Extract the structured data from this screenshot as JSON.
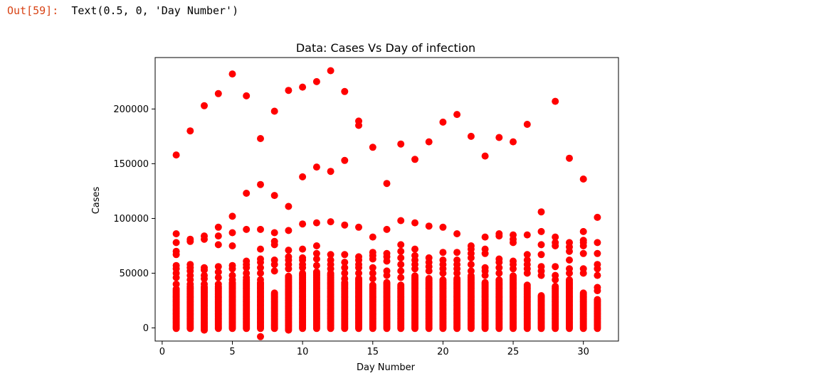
{
  "cell": {
    "prompt": "Out[59]:",
    "output": "Text(0.5, 0, 'Day Number')"
  },
  "chart_data": {
    "type": "scatter",
    "title": "Data: Cases Vs Day of infection",
    "xlabel": "Day Number",
    "ylabel": "Cases",
    "xlim": [
      -0.5,
      32.5
    ],
    "ylim": [
      -12000,
      247000
    ],
    "xticks": [
      0,
      5,
      10,
      15,
      20,
      25,
      30
    ],
    "yticks": [
      0,
      50000,
      100000,
      150000,
      200000
    ],
    "xtick_labels": [
      "0",
      "5",
      "10",
      "15",
      "20",
      "25",
      "30"
    ],
    "ytick_labels": [
      "0",
      "50000",
      "100000",
      "150000",
      "200000"
    ],
    "grid": false,
    "legend": "none",
    "marker_color": "#ff0000",
    "series": [
      {
        "points": [
          [
            1,
            158000
          ],
          [
            1,
            86000
          ],
          [
            1,
            78000
          ],
          [
            1,
            70000
          ],
          [
            1,
            67000
          ],
          [
            1,
            57000
          ],
          [
            1,
            54000
          ],
          [
            1,
            50000
          ],
          [
            1,
            46000
          ],
          [
            1,
            40000
          ],
          [
            2,
            180000
          ],
          [
            2,
            81000
          ],
          [
            2,
            79000
          ],
          [
            2,
            58000
          ],
          [
            2,
            55000
          ],
          [
            2,
            52000
          ],
          [
            2,
            48000
          ],
          [
            2,
            44000
          ],
          [
            2,
            40000
          ],
          [
            3,
            203000
          ],
          [
            3,
            84000
          ],
          [
            3,
            81000
          ],
          [
            3,
            55000
          ],
          [
            3,
            53000
          ],
          [
            3,
            48000
          ],
          [
            3,
            45000
          ],
          [
            3,
            40000
          ],
          [
            4,
            214000
          ],
          [
            4,
            92000
          ],
          [
            4,
            84000
          ],
          [
            4,
            76000
          ],
          [
            4,
            56000
          ],
          [
            4,
            51000
          ],
          [
            4,
            46000
          ],
          [
            4,
            40000
          ],
          [
            5,
            232000
          ],
          [
            5,
            102000
          ],
          [
            5,
            87000
          ],
          [
            5,
            75000
          ],
          [
            5,
            57000
          ],
          [
            5,
            54000
          ],
          [
            5,
            48000
          ],
          [
            5,
            44000
          ],
          [
            6,
            212000
          ],
          [
            6,
            123000
          ],
          [
            6,
            90000
          ],
          [
            6,
            61000
          ],
          [
            6,
            58000
          ],
          [
            6,
            55000
          ],
          [
            6,
            50000
          ],
          [
            6,
            46000
          ],
          [
            7,
            173000
          ],
          [
            7,
            131000
          ],
          [
            7,
            90000
          ],
          [
            7,
            72000
          ],
          [
            7,
            63000
          ],
          [
            7,
            60000
          ],
          [
            7,
            55000
          ],
          [
            7,
            50000
          ],
          [
            7,
            44000
          ],
          [
            7,
            -8000
          ],
          [
            8,
            198000
          ],
          [
            8,
            121000
          ],
          [
            8,
            87000
          ],
          [
            8,
            79000
          ],
          [
            8,
            76000
          ],
          [
            8,
            62000
          ],
          [
            8,
            58000
          ],
          [
            8,
            52000
          ],
          [
            9,
            217000
          ],
          [
            9,
            111000
          ],
          [
            9,
            89000
          ],
          [
            9,
            71000
          ],
          [
            9,
            65000
          ],
          [
            9,
            62000
          ],
          [
            9,
            58000
          ],
          [
            9,
            54000
          ],
          [
            10,
            220000
          ],
          [
            10,
            138000
          ],
          [
            10,
            95000
          ],
          [
            10,
            72000
          ],
          [
            10,
            64000
          ],
          [
            10,
            62000
          ],
          [
            10,
            58000
          ],
          [
            10,
            55000
          ],
          [
            11,
            225000
          ],
          [
            11,
            147000
          ],
          [
            11,
            96000
          ],
          [
            11,
            75000
          ],
          [
            11,
            68000
          ],
          [
            11,
            63000
          ],
          [
            11,
            57000
          ],
          [
            12,
            235000
          ],
          [
            12,
            143000
          ],
          [
            12,
            97000
          ],
          [
            12,
            67000
          ],
          [
            12,
            62000
          ],
          [
            12,
            58000
          ],
          [
            12,
            54000
          ],
          [
            13,
            216000
          ],
          [
            13,
            153000
          ],
          [
            13,
            94000
          ],
          [
            13,
            67000
          ],
          [
            13,
            60000
          ],
          [
            13,
            55000
          ],
          [
            13,
            50000
          ],
          [
            13,
            45000
          ],
          [
            14,
            189000
          ],
          [
            14,
            185000
          ],
          [
            14,
            92000
          ],
          [
            14,
            65000
          ],
          [
            14,
            62000
          ],
          [
            14,
            58000
          ],
          [
            14,
            55000
          ],
          [
            14,
            50000
          ],
          [
            15,
            165000
          ],
          [
            15,
            83000
          ],
          [
            15,
            69000
          ],
          [
            15,
            66000
          ],
          [
            15,
            63000
          ],
          [
            15,
            55000
          ],
          [
            15,
            50000
          ],
          [
            15,
            45000
          ],
          [
            16,
            132000
          ],
          [
            16,
            90000
          ],
          [
            16,
            68000
          ],
          [
            16,
            65000
          ],
          [
            16,
            61000
          ],
          [
            16,
            52000
          ],
          [
            16,
            48000
          ],
          [
            17,
            168000
          ],
          [
            17,
            98000
          ],
          [
            17,
            76000
          ],
          [
            17,
            70000
          ],
          [
            17,
            64000
          ],
          [
            17,
            58000
          ],
          [
            17,
            52000
          ],
          [
            17,
            46000
          ],
          [
            18,
            154000
          ],
          [
            18,
            96000
          ],
          [
            18,
            72000
          ],
          [
            18,
            66000
          ],
          [
            18,
            62000
          ],
          [
            18,
            58000
          ],
          [
            18,
            54000
          ],
          [
            19,
            170000
          ],
          [
            19,
            93000
          ],
          [
            19,
            64000
          ],
          [
            19,
            60000
          ],
          [
            19,
            56000
          ],
          [
            19,
            52000
          ],
          [
            20,
            188000
          ],
          [
            20,
            92000
          ],
          [
            20,
            69000
          ],
          [
            20,
            62000
          ],
          [
            20,
            58000
          ],
          [
            20,
            54000
          ],
          [
            20,
            50000
          ],
          [
            21,
            195000
          ],
          [
            21,
            86000
          ],
          [
            21,
            69000
          ],
          [
            21,
            62000
          ],
          [
            21,
            58000
          ],
          [
            21,
            54000
          ],
          [
            21,
            50000
          ],
          [
            22,
            175000
          ],
          [
            22,
            75000
          ],
          [
            22,
            72000
          ],
          [
            22,
            68000
          ],
          [
            22,
            64000
          ],
          [
            22,
            58000
          ],
          [
            22,
            52000
          ],
          [
            23,
            157000
          ],
          [
            23,
            83000
          ],
          [
            23,
            72000
          ],
          [
            23,
            68000
          ],
          [
            23,
            55000
          ],
          [
            23,
            52000
          ],
          [
            23,
            48000
          ],
          [
            24,
            174000
          ],
          [
            24,
            86000
          ],
          [
            24,
            84000
          ],
          [
            24,
            63000
          ],
          [
            24,
            60000
          ],
          [
            24,
            55000
          ],
          [
            24,
            50000
          ],
          [
            25,
            170000
          ],
          [
            25,
            85000
          ],
          [
            25,
            81000
          ],
          [
            25,
            78000
          ],
          [
            25,
            61000
          ],
          [
            25,
            58000
          ],
          [
            25,
            54000
          ],
          [
            26,
            186000
          ],
          [
            26,
            85000
          ],
          [
            26,
            67000
          ],
          [
            26,
            62000
          ],
          [
            26,
            58000
          ],
          [
            26,
            54000
          ],
          [
            26,
            50000
          ],
          [
            27,
            106000
          ],
          [
            27,
            88000
          ],
          [
            27,
            76000
          ],
          [
            27,
            67000
          ],
          [
            27,
            56000
          ],
          [
            27,
            52000
          ],
          [
            27,
            48000
          ],
          [
            28,
            207000
          ],
          [
            28,
            83000
          ],
          [
            28,
            78000
          ],
          [
            28,
            75000
          ],
          [
            28,
            56000
          ],
          [
            28,
            48000
          ],
          [
            28,
            44000
          ],
          [
            29,
            155000
          ],
          [
            29,
            78000
          ],
          [
            29,
            74000
          ],
          [
            29,
            70000
          ],
          [
            29,
            62000
          ],
          [
            29,
            54000
          ],
          [
            29,
            50000
          ],
          [
            30,
            136000
          ],
          [
            30,
            88000
          ],
          [
            30,
            80000
          ],
          [
            30,
            78000
          ],
          [
            30,
            75000
          ],
          [
            30,
            68000
          ],
          [
            30,
            54000
          ],
          [
            30,
            50000
          ],
          [
            31,
            101000
          ],
          [
            31,
            78000
          ],
          [
            31,
            68000
          ],
          [
            31,
            58000
          ],
          [
            31,
            54000
          ],
          [
            31,
            48000
          ],
          [
            31,
            37000
          ],
          [
            31,
            34000
          ]
        ],
        "dense_columns": [
          {
            "x": 1,
            "from": -500,
            "to": 36000
          },
          {
            "x": 2,
            "from": -500,
            "to": 38000
          },
          {
            "x": 3,
            "from": -2000,
            "to": 38000
          },
          {
            "x": 4,
            "from": -500,
            "to": 38000
          },
          {
            "x": 5,
            "from": -500,
            "to": 42000
          },
          {
            "x": 6,
            "from": -500,
            "to": 44000
          },
          {
            "x": 7,
            "from": -500,
            "to": 42000
          },
          {
            "x": 8,
            "from": -500,
            "to": 32000
          },
          {
            "x": 9,
            "from": -2000,
            "to": 48000
          },
          {
            "x": 10,
            "from": -500,
            "to": 50000
          },
          {
            "x": 11,
            "from": -500,
            "to": 52000
          },
          {
            "x": 12,
            "from": -500,
            "to": 50000
          },
          {
            "x": 13,
            "from": -500,
            "to": 42000
          },
          {
            "x": 14,
            "from": -500,
            "to": 46000
          },
          {
            "x": 15,
            "from": -500,
            "to": 40000
          },
          {
            "x": 16,
            "from": -500,
            "to": 42000
          },
          {
            "x": 17,
            "from": -500,
            "to": 40000
          },
          {
            "x": 18,
            "from": -500,
            "to": 48000
          },
          {
            "x": 19,
            "from": -500,
            "to": 46000
          },
          {
            "x": 20,
            "from": -500,
            "to": 44000
          },
          {
            "x": 21,
            "from": -500,
            "to": 46000
          },
          {
            "x": 22,
            "from": -500,
            "to": 48000
          },
          {
            "x": 23,
            "from": -500,
            "to": 42000
          },
          {
            "x": 24,
            "from": -500,
            "to": 44000
          },
          {
            "x": 25,
            "from": -500,
            "to": 48000
          },
          {
            "x": 26,
            "from": -500,
            "to": 40000
          },
          {
            "x": 27,
            "from": -500,
            "to": 30000
          },
          {
            "x": 28,
            "from": -500,
            "to": 38000
          },
          {
            "x": 29,
            "from": -500,
            "to": 44000
          },
          {
            "x": 30,
            "from": -500,
            "to": 32000
          },
          {
            "x": 31,
            "from": -500,
            "to": 26000
          }
        ]
      }
    ]
  }
}
